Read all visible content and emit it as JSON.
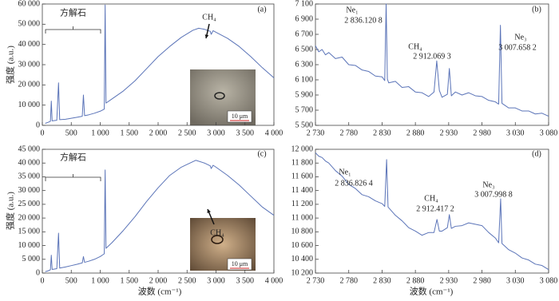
{
  "chart_data": [
    {
      "type": "line",
      "panel_label": "(a)",
      "mineral_label": "方解石",
      "peak_label": "CH₄",
      "scale_label": "10 μm",
      "y_label": "强度 (a.u.)",
      "color": "#5b74b8",
      "x": [
        50,
        100,
        140,
        155,
        170,
        250,
        280,
        300,
        400,
        500,
        600,
        690,
        710,
        730,
        800,
        900,
        1000,
        1070,
        1085,
        1100,
        1200,
        1400,
        1600,
        1800,
        2000,
        2200,
        2400,
        2600,
        2700,
        2800,
        2900,
        2917,
        2950,
        3000,
        3200,
        3400,
        3600,
        3800,
        4000
      ],
      "values": [
        1000,
        1500,
        2000,
        12000,
        2200,
        2500,
        21000,
        2800,
        3000,
        3500,
        4000,
        4500,
        15000,
        4800,
        5200,
        6000,
        7000,
        8000,
        59500,
        11000,
        13000,
        17000,
        22000,
        28000,
        34000,
        39000,
        43500,
        47000,
        48000,
        47500,
        46500,
        45000,
        46800,
        46000,
        43000,
        39000,
        34000,
        28500,
        23500
      ],
      "xlim": [
        0,
        4000
      ],
      "xticks": [
        0,
        500,
        {
          "value": 1000,
          "label": "1 000"
        },
        {
          "value": 1500,
          "label": "1 500"
        },
        {
          "value": 2000,
          "label": "2 000"
        },
        {
          "value": 2500,
          "label": "2 500"
        },
        {
          "value": 3000,
          "label": "3 000"
        },
        {
          "value": 3500,
          "label": "3 500"
        },
        {
          "value": 4000,
          "label": "4 000"
        }
      ],
      "ylim": [
        0,
        60000
      ],
      "yticks": [
        0,
        {
          "value": 10000,
          "label": "10 000"
        },
        {
          "value": 20000,
          "label": "20 000"
        },
        {
          "value": 30000,
          "label": "30 000"
        },
        {
          "value": 40000,
          "label": "40 000"
        },
        {
          "value": 50000,
          "label": "50 000"
        },
        {
          "value": 60000,
          "label": "60 000"
        }
      ]
    },
    {
      "type": "line",
      "panel_label": "(b)",
      "color": "#5b74b8",
      "peaks": [
        {
          "name": "Ne₁",
          "value": "2 836.120 8"
        },
        {
          "name": "CH₄",
          "value": "2 912.069 3"
        },
        {
          "name": "Ne₃",
          "value": "3 007.658 2"
        }
      ],
      "x": [
        2730,
        2735,
        2740,
        2745,
        2750,
        2760,
        2770,
        2780,
        2790,
        2800,
        2810,
        2820,
        2830,
        2834,
        2836.12,
        2838,
        2840,
        2850,
        2860,
        2870,
        2880,
        2890,
        2900,
        2908,
        2912.07,
        2916,
        2920,
        2928,
        2931,
        2934,
        2940,
        2950,
        2960,
        2970,
        2980,
        2990,
        3000,
        3005,
        3007.66,
        3010,
        3020,
        3030,
        3040,
        3050,
        3060,
        3070,
        3080
      ],
      "values": [
        6550,
        6470,
        6500,
        6430,
        6460,
        6380,
        6400,
        6300,
        6290,
        6230,
        6210,
        6150,
        6140,
        6090,
        7100,
        6110,
        6060,
        6080,
        6000,
        6010,
        5940,
        5930,
        5880,
        5940,
        6350,
        5960,
        5870,
        5910,
        6250,
        5890,
        5940,
        5900,
        5930,
        5890,
        5880,
        5830,
        5810,
        5780,
        6820,
        5790,
        5730,
        5730,
        5690,
        5690,
        5650,
        5660,
        5620
      ],
      "xlim": [
        2730,
        3080
      ],
      "xticks": [
        {
          "value": 2730,
          "label": "2 730"
        },
        {
          "value": 2780,
          "label": "2 780"
        },
        {
          "value": 2830,
          "label": "2 830"
        },
        {
          "value": 2880,
          "label": "2 880"
        },
        {
          "value": 2930,
          "label": "2 930"
        },
        {
          "value": 2980,
          "label": "2 980"
        },
        {
          "value": 3030,
          "label": "3 030"
        },
        {
          "value": 3080,
          "label": "3 080"
        }
      ],
      "ylim": [
        5500,
        7100
      ],
      "yticks": [
        {
          "value": 5500,
          "label": "5 500"
        },
        {
          "value": 5700,
          "label": "5 700"
        },
        {
          "value": 5900,
          "label": "5 900"
        },
        {
          "value": 6100,
          "label": "6 100"
        },
        {
          "value": 6300,
          "label": "6 300"
        },
        {
          "value": 6500,
          "label": "6 500"
        },
        {
          "value": 6700,
          "label": "6 700"
        },
        {
          "value": 6900,
          "label": "6 900"
        },
        {
          "value": 7100,
          "label": "7 100"
        }
      ]
    },
    {
      "type": "line",
      "panel_label": "(c)",
      "mineral_label": "方解石",
      "peak_label": "CH₄",
      "scale_label": "10 μm",
      "y_label": "强度 (a.u.)",
      "x_label": "波数 (cm⁻¹)",
      "color": "#5b74b8",
      "x": [
        50,
        100,
        140,
        155,
        170,
        250,
        280,
        300,
        400,
        500,
        600,
        690,
        710,
        730,
        800,
        900,
        1000,
        1070,
        1085,
        1100,
        1200,
        1400,
        1600,
        1800,
        2000,
        2200,
        2400,
        2500,
        2650,
        2800,
        2900,
        2917,
        2950,
        3000,
        3200,
        3400,
        3600,
        3800,
        4000
      ],
      "values": [
        500,
        800,
        1200,
        6500,
        1300,
        1600,
        14500,
        1800,
        2200,
        2700,
        3200,
        3700,
        6000,
        3900,
        4300,
        5000,
        6000,
        7000,
        37500,
        9000,
        11000,
        15500,
        20500,
        26000,
        31000,
        35500,
        38500,
        39500,
        41000,
        40000,
        39000,
        38000,
        39200,
        38500,
        35500,
        32000,
        28000,
        24000,
        21000
      ],
      "xlim": [
        0,
        4000
      ],
      "xticks": [
        0,
        500,
        {
          "value": 1000,
          "label": "1 000"
        },
        {
          "value": 1500,
          "label": "1 500"
        },
        {
          "value": 2000,
          "label": "2 000"
        },
        {
          "value": 2500,
          "label": "2 500"
        },
        {
          "value": 3000,
          "label": "3 000"
        },
        {
          "value": 3500,
          "label": "3 500"
        },
        {
          "value": 4000,
          "label": "4 000"
        }
      ],
      "ylim": [
        0,
        45000
      ],
      "yticks": [
        0,
        {
          "value": 5000,
          "label": "5 000"
        },
        {
          "value": 10000,
          "label": "10 000"
        },
        {
          "value": 15000,
          "label": "15 000"
        },
        {
          "value": 20000,
          "label": "20 000"
        },
        {
          "value": 25000,
          "label": "25 000"
        },
        {
          "value": 30000,
          "label": "30 000"
        },
        {
          "value": 35000,
          "label": "35 000"
        },
        {
          "value": 40000,
          "label": "40 000"
        },
        {
          "value": 45000,
          "label": "45 000"
        }
      ]
    },
    {
      "type": "line",
      "panel_label": "(d)",
      "x_label": "波数 (cm⁻¹)",
      "color": "#5b74b8",
      "peaks": [
        {
          "name": "Ne₁",
          "value": "2 836.826 4"
        },
        {
          "name": "CH₄",
          "value": "2 912.417 2"
        },
        {
          "name": "Ne₃",
          "value": "3 007.998 8"
        }
      ],
      "x": [
        2730,
        2735,
        2740,
        2745,
        2750,
        2760,
        2770,
        2780,
        2790,
        2800,
        2810,
        2820,
        2830,
        2834,
        2836.83,
        2839,
        2850,
        2860,
        2870,
        2880,
        2890,
        2900,
        2908,
        2912.42,
        2916,
        2920,
        2928,
        2931,
        2934,
        2940,
        2950,
        2960,
        2970,
        2980,
        2990,
        3000,
        3005,
        3008,
        3010,
        3020,
        3030,
        3040,
        3050,
        3060,
        3070,
        3080
      ],
      "values": [
        11950,
        11900,
        11880,
        11830,
        11800,
        11690,
        11610,
        11490,
        11430,
        11340,
        11310,
        11250,
        11210,
        11170,
        11850,
        11160,
        11040,
        10960,
        10860,
        10810,
        10750,
        10790,
        10790,
        10980,
        10810,
        10810,
        10860,
        11050,
        10850,
        10880,
        10890,
        10930,
        10910,
        10890,
        10790,
        10710,
        10640,
        11280,
        10630,
        10540,
        10490,
        10420,
        10390,
        10330,
        10310,
        10250
      ],
      "xlim": [
        2730,
        3080
      ],
      "xticks": [
        {
          "value": 2730,
          "label": "2 730"
        },
        {
          "value": 2780,
          "label": "2 780"
        },
        {
          "value": 2830,
          "label": "2 830"
        },
        {
          "value": 2880,
          "label": "2 880"
        },
        {
          "value": 2930,
          "label": "2 930"
        },
        {
          "value": 2980,
          "label": "2 980"
        },
        {
          "value": 3030,
          "label": "3 030"
        },
        {
          "value": 3080,
          "label": "3 080"
        }
      ],
      "ylim": [
        10200,
        12000
      ],
      "yticks": [
        {
          "value": 10200,
          "label": "10 200"
        },
        {
          "value": 10400,
          "label": "10 400"
        },
        {
          "value": 10600,
          "label": "10 600"
        },
        {
          "value": 10800,
          "label": "10 800"
        },
        {
          "value": 11000,
          "label": "11 000"
        },
        {
          "value": 11200,
          "label": "11 200"
        },
        {
          "value": 11400,
          "label": "11 400"
        },
        {
          "value": 11600,
          "label": "11 600"
        },
        {
          "value": 11800,
          "label": "11 800"
        },
        {
          "value": 12000,
          "label": "12 000"
        }
      ]
    }
  ]
}
